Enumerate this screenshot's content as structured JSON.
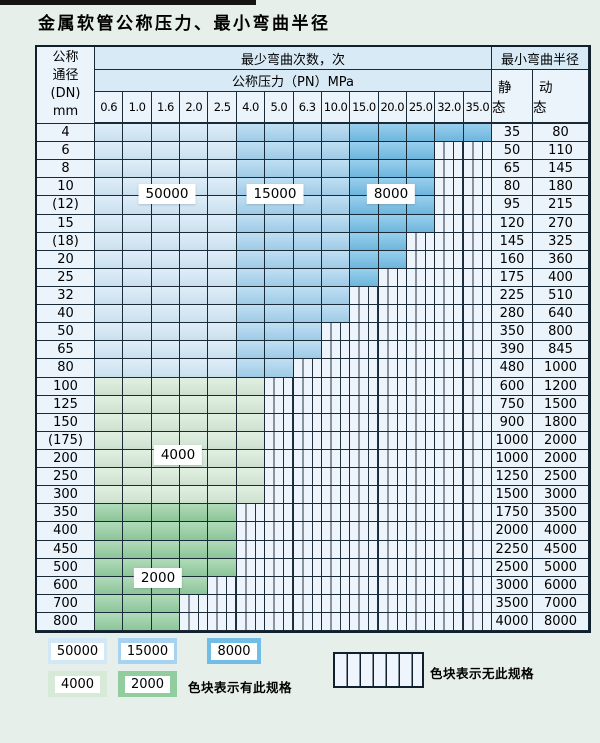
{
  "title": "金属软管公称压力、最小弯曲半径",
  "colors": {
    "page_bg": "#e6efe9",
    "header_band": "#d9eaf7",
    "cell_bg": "#ebf4fb",
    "grid_line": "#1a2a36",
    "hatch_bg": "#edf4fc",
    "c50000": "#d2e8f7",
    "c15000": "#a6d3ef",
    "c8000": "#72bde6",
    "c4000": "#d6ead7",
    "c2000": "#92cd9f"
  },
  "table": {
    "dn_header_lines": [
      "公称",
      "通径",
      "(DN)",
      "mm"
    ],
    "bend_times_header": "最少弯曲次数，次",
    "pressure_header": "公称压力（PN）MPa",
    "radius_header": "最小弯曲半径",
    "static_header": "静 态",
    "dynamic_header": "动 态",
    "pressures": [
      "0.6",
      "1.0",
      "1.6",
      "2.0",
      "2.5",
      "4.0",
      "5.0",
      "6.3",
      "10.0",
      "15.0",
      "20.0",
      "25.0",
      "32.0",
      "35.0"
    ],
    "blue_column_regions": {
      "c50000": [
        0,
        4
      ],
      "c15000": [
        5,
        8
      ],
      "c8000": [
        9,
        13
      ]
    },
    "region_labels": {
      "r50000": "50000",
      "r15000": "15000",
      "r8000": "8000",
      "r4000": "4000",
      "r2000": "2000"
    },
    "rows": [
      {
        "dn": "4",
        "avail": 14,
        "region": "blue",
        "static": "35",
        "dynamic": "80"
      },
      {
        "dn": "6",
        "avail": 12,
        "region": "blue",
        "static": "50",
        "dynamic": "110"
      },
      {
        "dn": "8",
        "avail": 12,
        "region": "blue",
        "static": "65",
        "dynamic": "145"
      },
      {
        "dn": "10",
        "avail": 12,
        "region": "blue",
        "static": "80",
        "dynamic": "180"
      },
      {
        "dn": "(12)",
        "avail": 12,
        "region": "blue",
        "static": "95",
        "dynamic": "215"
      },
      {
        "dn": "15",
        "avail": 12,
        "region": "blue",
        "static": "120",
        "dynamic": "270"
      },
      {
        "dn": "(18)",
        "avail": 11,
        "region": "blue",
        "static": "145",
        "dynamic": "325"
      },
      {
        "dn": "20",
        "avail": 11,
        "region": "blue",
        "static": "160",
        "dynamic": "360"
      },
      {
        "dn": "25",
        "avail": 10,
        "region": "blue",
        "static": "175",
        "dynamic": "400"
      },
      {
        "dn": "32",
        "avail": 9,
        "region": "blue",
        "static": "225",
        "dynamic": "510"
      },
      {
        "dn": "40",
        "avail": 9,
        "region": "blue",
        "static": "280",
        "dynamic": "640"
      },
      {
        "dn": "50",
        "avail": 8,
        "region": "blue",
        "static": "350",
        "dynamic": "800"
      },
      {
        "dn": "65",
        "avail": 8,
        "region": "blue",
        "static": "390",
        "dynamic": "845"
      },
      {
        "dn": "80",
        "avail": 7,
        "region": "blue",
        "static": "480",
        "dynamic": "1000"
      },
      {
        "dn": "100",
        "avail": 6,
        "region": "c4000",
        "static": "600",
        "dynamic": "1200"
      },
      {
        "dn": "125",
        "avail": 6,
        "region": "c4000",
        "static": "750",
        "dynamic": "1500"
      },
      {
        "dn": "150",
        "avail": 6,
        "region": "c4000",
        "static": "900",
        "dynamic": "1800"
      },
      {
        "dn": "(175)",
        "avail": 6,
        "region": "c4000",
        "static": "1000",
        "dynamic": "2000"
      },
      {
        "dn": "200",
        "avail": 6,
        "region": "c4000",
        "static": "1000",
        "dynamic": "2000"
      },
      {
        "dn": "250",
        "avail": 6,
        "region": "c4000",
        "static": "1250",
        "dynamic": "2500"
      },
      {
        "dn": "300",
        "avail": 6,
        "region": "c4000",
        "static": "1500",
        "dynamic": "3000"
      },
      {
        "dn": "350",
        "avail": 5,
        "region": "c2000",
        "static": "1750",
        "dynamic": "3500"
      },
      {
        "dn": "400",
        "avail": 5,
        "region": "c2000",
        "static": "2000",
        "dynamic": "4000"
      },
      {
        "dn": "450",
        "avail": 5,
        "region": "c2000",
        "static": "2250",
        "dynamic": "4500"
      },
      {
        "dn": "500",
        "avail": 5,
        "region": "c2000",
        "static": "2500",
        "dynamic": "5000"
      },
      {
        "dn": "600",
        "avail": 4,
        "region": "c2000",
        "static": "3000",
        "dynamic": "6000"
      },
      {
        "dn": "700",
        "avail": 3,
        "region": "c2000",
        "static": "3500",
        "dynamic": "7000"
      },
      {
        "dn": "800",
        "avail": 3,
        "region": "c2000",
        "static": "4000",
        "dynamic": "8000"
      }
    ]
  },
  "legend": {
    "items": [
      {
        "value": "50000",
        "color": "c50000"
      },
      {
        "value": "15000",
        "color": "c15000"
      },
      {
        "value": "8000",
        "color": "c8000"
      },
      {
        "value": "4000",
        "color": "c4000"
      },
      {
        "value": "2000",
        "color": "c2000"
      }
    ],
    "have_text": "色块表示有此规格",
    "none_text": "色块表示无此规格"
  }
}
